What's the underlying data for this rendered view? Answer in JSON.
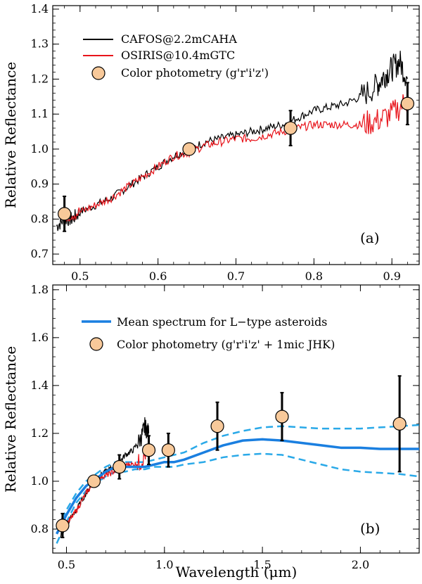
{
  "chart_data": [
    {
      "type": "line",
      "panel_label": "(a)",
      "ylabel": "Relative Reflectance",
      "xlabel": "",
      "xlim": [
        0.465,
        0.935
      ],
      "ylim": [
        0.67,
        1.41
      ],
      "x_ticks": [
        0.5,
        0.6,
        0.7,
        0.8,
        0.9
      ],
      "x_tick_labels": [
        "0.5",
        "0.6",
        "0.7",
        "0.8",
        "0.9"
      ],
      "y_ticks": [
        0.7,
        0.8,
        0.9,
        1.0,
        1.1,
        1.2,
        1.3,
        1.4
      ],
      "y_tick_labels": [
        "0.7",
        "0.8",
        "0.9",
        "1.0",
        "1.1",
        "1.2",
        "1.3",
        "1.4"
      ],
      "legend": [
        "CAFOS@2.2mCAHA",
        "OSIRIS@10.4mGTC",
        "Color photometry (g'r'i'z')"
      ],
      "series": [
        {
          "name": "CAFOS@2.2mCAHA",
          "color": "#000000",
          "x": [
            0.47,
            0.48,
            0.49,
            0.5,
            0.52,
            0.54,
            0.56,
            0.58,
            0.6,
            0.62,
            0.64,
            0.66,
            0.68,
            0.7,
            0.72,
            0.74,
            0.76,
            0.78,
            0.8,
            0.82,
            0.84,
            0.86,
            0.88,
            0.89,
            0.9,
            0.91,
            0.92
          ],
          "y": [
            0.78,
            0.8,
            0.8,
            0.82,
            0.84,
            0.86,
            0.89,
            0.92,
            0.95,
            0.98,
            1.0,
            1.02,
            1.03,
            1.04,
            1.05,
            1.06,
            1.07,
            1.09,
            1.11,
            1.12,
            1.13,
            1.15,
            1.18,
            1.21,
            1.23,
            1.25,
            1.2
          ],
          "noise": 0.012
        },
        {
          "name": "OSIRIS@10.4mGTC",
          "color": "#e8141b",
          "x": [
            0.48,
            0.5,
            0.52,
            0.54,
            0.56,
            0.58,
            0.6,
            0.62,
            0.64,
            0.66,
            0.68,
            0.7,
            0.72,
            0.74,
            0.76,
            0.78,
            0.8,
            0.82,
            0.84,
            0.86,
            0.88,
            0.9,
            0.92
          ],
          "y": [
            0.81,
            0.82,
            0.84,
            0.86,
            0.89,
            0.92,
            0.95,
            0.98,
            0.99,
            1.01,
            1.02,
            1.03,
            1.03,
            1.04,
            1.05,
            1.06,
            1.07,
            1.07,
            1.07,
            1.07,
            1.08,
            1.1,
            1.14
          ],
          "noise": 0.012
        }
      ],
      "photometry": {
        "name": "Color photometry (g'r'i'z')",
        "x": [
          0.48,
          0.64,
          0.77,
          0.92
        ],
        "y": [
          0.815,
          1.0,
          1.06,
          1.13
        ],
        "err": [
          0.05,
          0.0,
          0.05,
          0.06
        ]
      }
    },
    {
      "type": "line",
      "panel_label": "(b)",
      "ylabel": "Relative Reflectance",
      "xlabel": "Wavelength (μm)",
      "xlim": [
        0.43,
        2.3
      ],
      "ylim": [
        0.7,
        1.82
      ],
      "x_ticks": [
        0.5,
        1.0,
        1.5,
        2.0
      ],
      "x_tick_labels": [
        "0.5",
        "1.0",
        "1.5",
        "2.0"
      ],
      "y_ticks": [
        0.8,
        1.0,
        1.2,
        1.4,
        1.6,
        1.8
      ],
      "y_tick_labels": [
        "0.8",
        "1.0",
        "1.2",
        "1.4",
        "1.6",
        "1.8"
      ],
      "legend": [
        "Mean spectrum for L−type asteroids",
        "Color photometry (g'r'i'z' + 1mic JHK)"
      ],
      "mean_spectrum": {
        "name": "Mean spectrum for L−type asteroids",
        "color": "#1a7fe0",
        "x": [
          0.45,
          0.5,
          0.55,
          0.6,
          0.65,
          0.7,
          0.75,
          0.8,
          0.85,
          0.9,
          0.95,
          1.0,
          1.05,
          1.1,
          1.2,
          1.3,
          1.4,
          1.5,
          1.6,
          1.7,
          1.8,
          1.9,
          2.0,
          2.1,
          2.2,
          2.3
        ],
        "y": [
          0.78,
          0.86,
          0.93,
          0.98,
          1.01,
          1.04,
          1.06,
          1.06,
          1.06,
          1.06,
          1.07,
          1.08,
          1.08,
          1.09,
          1.12,
          1.15,
          1.17,
          1.175,
          1.17,
          1.16,
          1.15,
          1.14,
          1.14,
          1.135,
          1.135,
          1.135
        ],
        "upper": [
          0.8,
          0.88,
          0.95,
          1.0,
          1.03,
          1.06,
          1.08,
          1.08,
          1.08,
          1.08,
          1.09,
          1.1,
          1.11,
          1.12,
          1.16,
          1.19,
          1.21,
          1.225,
          1.23,
          1.225,
          1.22,
          1.22,
          1.22,
          1.225,
          1.23,
          1.235
        ],
        "lower": [
          0.74,
          0.83,
          0.91,
          0.96,
          0.99,
          1.02,
          1.04,
          1.04,
          1.05,
          1.05,
          1.06,
          1.06,
          1.06,
          1.07,
          1.08,
          1.1,
          1.11,
          1.115,
          1.11,
          1.09,
          1.07,
          1.05,
          1.04,
          1.035,
          1.03,
          1.02
        ]
      },
      "series": [
        {
          "name": "CAFOS@2.2mCAHA",
          "color": "#000000",
          "x": [
            0.47,
            0.5,
            0.55,
            0.6,
            0.64,
            0.68,
            0.72,
            0.76,
            0.8,
            0.84,
            0.88,
            0.9,
            0.92
          ],
          "y": [
            0.78,
            0.82,
            0.88,
            0.95,
            1.0,
            1.03,
            1.05,
            1.07,
            1.11,
            1.13,
            1.18,
            1.23,
            1.2
          ],
          "noise": 0.012
        },
        {
          "name": "OSIRIS@10.4mGTC",
          "color": "#e8141b",
          "x": [
            0.48,
            0.52,
            0.56,
            0.6,
            0.64,
            0.68,
            0.72,
            0.76,
            0.8,
            0.84,
            0.88,
            0.92
          ],
          "y": [
            0.81,
            0.84,
            0.89,
            0.95,
            0.99,
            1.02,
            1.03,
            1.05,
            1.07,
            1.07,
            1.08,
            1.14
          ],
          "noise": 0.012
        }
      ],
      "photometry": {
        "name": "Color photometry (g'r'i'z' + 1mic JHK)",
        "x": [
          0.48,
          0.64,
          0.77,
          0.92,
          1.02,
          1.27,
          1.6,
          2.2
        ],
        "y": [
          0.815,
          1.0,
          1.06,
          1.13,
          1.13,
          1.23,
          1.27,
          1.24
        ],
        "err": [
          0.05,
          0.0,
          0.05,
          0.06,
          0.07,
          0.1,
          0.1,
          0.2
        ]
      }
    }
  ],
  "colors": {
    "photometry_fill": "#f8c99a",
    "mean_dashed": "#2aa9e8"
  }
}
